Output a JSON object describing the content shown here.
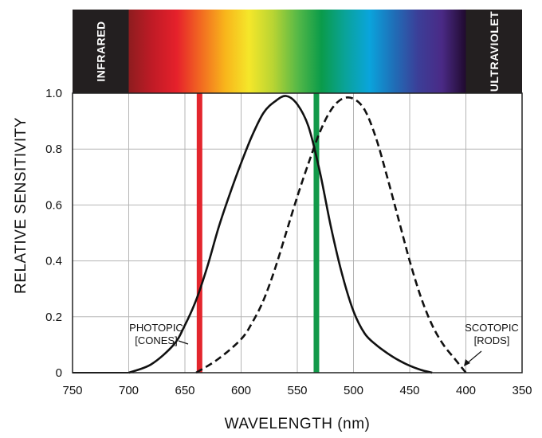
{
  "chart_data": {
    "type": "line",
    "xlabel": "WAVELENGTH (nm)",
    "ylabel": "RELATIVE SENSITIVITY",
    "xlim": [
      750,
      350
    ],
    "ylim": [
      0,
      1.0
    ],
    "x_ticks": [
      750,
      700,
      650,
      600,
      550,
      500,
      450,
      400,
      350
    ],
    "y_ticks": [
      {
        "value": 0,
        "label": "0"
      },
      {
        "value": 0.2,
        "label": "0.2"
      },
      {
        "value": 0.4,
        "label": "0.4"
      },
      {
        "value": 0.6,
        "label": "0.6"
      },
      {
        "value": 0.8,
        "label": "0.8"
      },
      {
        "value": 1.0,
        "label": "1.0"
      }
    ],
    "grid": true,
    "spectrum_band": {
      "left_label": "INFRARED",
      "right_label": "ULTRAVIOLET",
      "range": [
        700,
        400
      ],
      "colors": [
        "#8e1c1f",
        "#c11b26",
        "#e6212b",
        "#f26a21",
        "#f8b51b",
        "#f5e72a",
        "#b8d433",
        "#57b947",
        "#0a9b4a",
        "#0aa39a",
        "#0aa4dc",
        "#1f6fb8",
        "#3b3f98",
        "#4a2a86",
        "#200a2e"
      ]
    },
    "series": [
      {
        "name": "PHOTOPIC [CONES]",
        "style": "solid",
        "x": [
          700,
          680,
          660,
          650,
          640,
          630,
          620,
          610,
          600,
          590,
          580,
          570,
          560,
          550,
          540,
          530,
          520,
          510,
          500,
          490,
          480,
          470,
          460,
          450,
          440,
          430
        ],
        "y": [
          0.0,
          0.03,
          0.1,
          0.17,
          0.26,
          0.38,
          0.52,
          0.64,
          0.75,
          0.85,
          0.93,
          0.97,
          0.99,
          0.96,
          0.88,
          0.72,
          0.52,
          0.35,
          0.22,
          0.14,
          0.1,
          0.07,
          0.045,
          0.025,
          0.01,
          0.0
        ]
      },
      {
        "name": "SCOTOPIC [RODS]",
        "style": "dashed",
        "x": [
          640,
          620,
          600,
          590,
          580,
          570,
          560,
          550,
          540,
          530,
          520,
          510,
          500,
          490,
          480,
          470,
          460,
          450,
          440,
          430,
          420,
          410,
          400
        ],
        "y": [
          0.0,
          0.05,
          0.12,
          0.18,
          0.26,
          0.37,
          0.5,
          0.63,
          0.75,
          0.86,
          0.94,
          0.98,
          0.98,
          0.94,
          0.84,
          0.7,
          0.55,
          0.4,
          0.27,
          0.17,
          0.1,
          0.05,
          0.0
        ]
      }
    ],
    "markers": [
      {
        "x": 637,
        "color": "#e3262d"
      },
      {
        "x": 533,
        "color": "#129a4a"
      }
    ],
    "annotations": [
      {
        "lines": [
          "PHOTOPIC",
          "[CONES]"
        ],
        "for": "PHOTOPIC [CONES]"
      },
      {
        "lines": [
          "SCOTOPIC",
          "[RODS]"
        ],
        "for": "SCOTOPIC [RODS]"
      }
    ]
  }
}
